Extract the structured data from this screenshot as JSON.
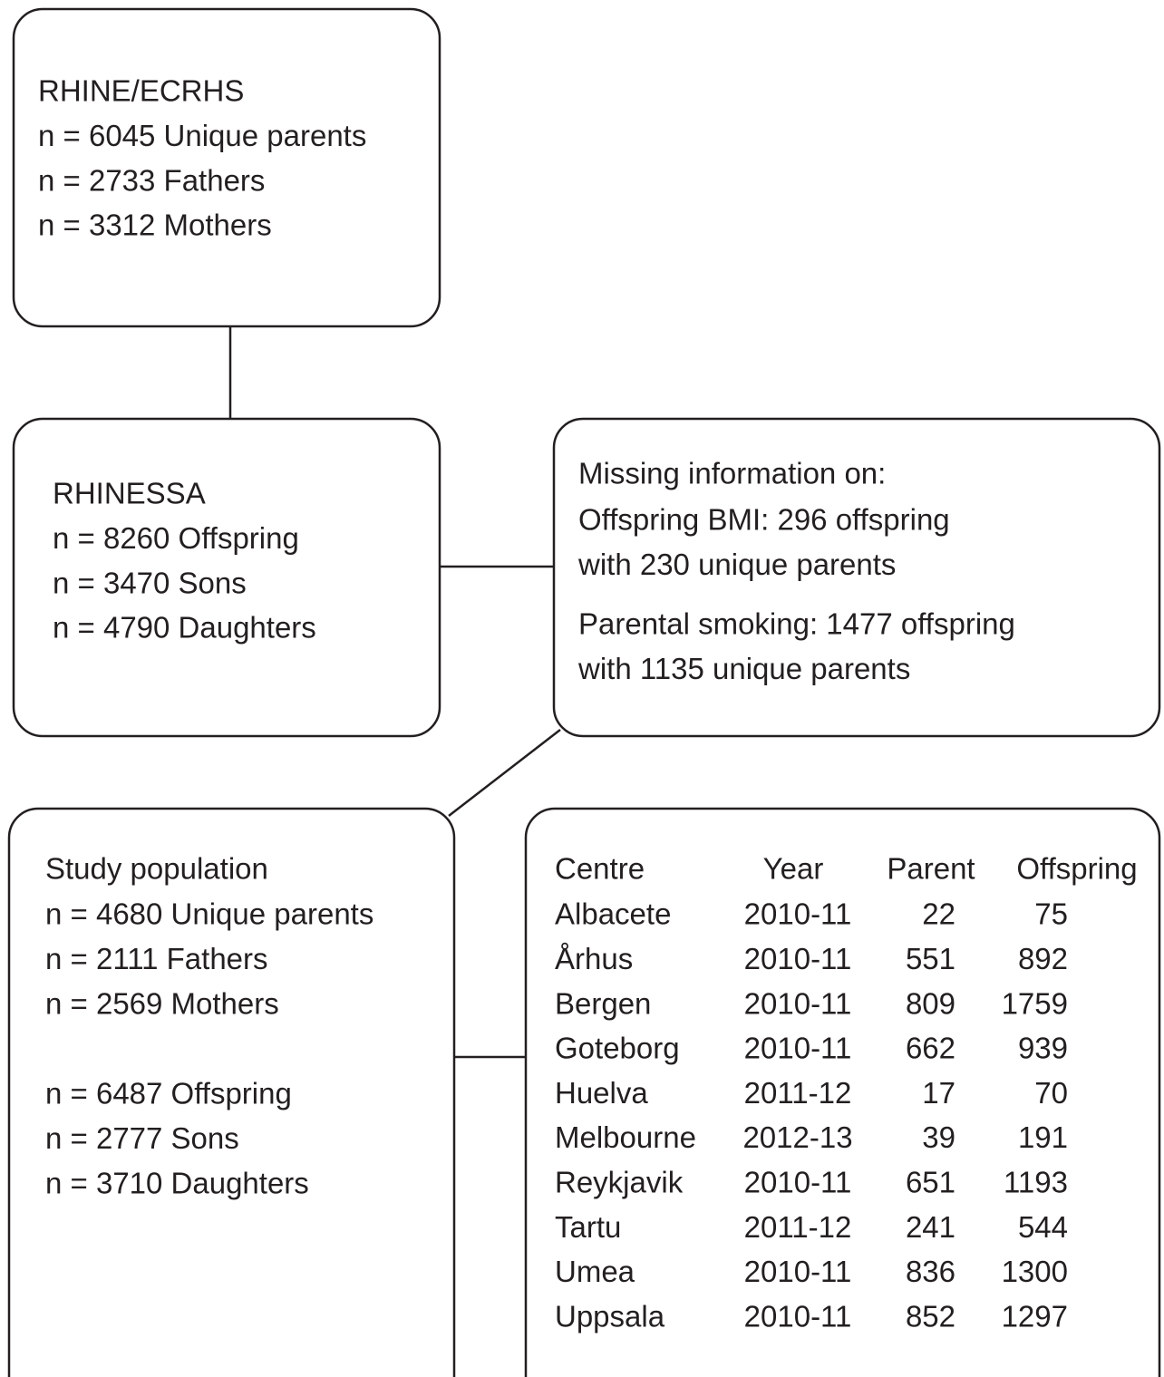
{
  "boxes": {
    "cohort": {
      "lines": [
        "RHINE/ECRHS",
        "n = 6045 Unique parents",
        "n = 2733 Fathers",
        "n = 3312 Mothers"
      ]
    },
    "rhinessa": {
      "lines": [
        "RHINESSA",
        "n = 8260 Offspring",
        "n = 3470 Sons",
        "n = 4790 Daughters"
      ]
    },
    "missing": {
      "heading": "Missing information on:",
      "bmi": [
        "Offspring BMI: 296 offspring",
        "with 230 unique parents"
      ],
      "smoking": [
        "Parental smoking: 1477 offspring",
        "with 1135 unique parents"
      ]
    },
    "study": {
      "title": "Study population",
      "parents": [
        "n = 4680 Unique parents",
        "n = 2111 Fathers",
        "n = 2569 Mothers"
      ],
      "offspring": [
        "n = 6487 Offspring",
        "n = 2777 Sons",
        "n = 3710 Daughters"
      ]
    }
  },
  "table": {
    "header": [
      "Centre",
      "Year",
      "Parent",
      "Offspring"
    ],
    "rows": [
      [
        "Albacete",
        "2010-11",
        22,
        75
      ],
      [
        "Århus",
        "2010-11",
        551,
        892
      ],
      [
        "Bergen",
        "2010-11",
        809,
        1759
      ],
      [
        "Goteborg",
        "2010-11",
        662,
        939
      ],
      [
        "Huelva",
        "2011-12",
        17,
        70
      ],
      [
        "Melbourne",
        "2012-13",
        39,
        191
      ],
      [
        "Reykjavik",
        "2010-11",
        651,
        1193
      ],
      [
        "Tartu",
        "2011-12",
        241,
        544
      ],
      [
        "Umea",
        "2010-11",
        836,
        1300
      ],
      [
        "Uppsala",
        "2010-11",
        852,
        1297
      ]
    ]
  }
}
